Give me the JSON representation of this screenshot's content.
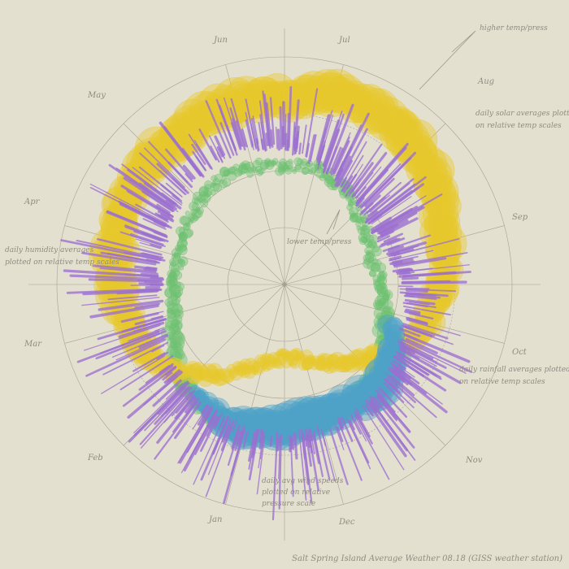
{
  "chart_data": {
    "type": "scatter",
    "projection": "polar",
    "title": "Salt Spring Island Average Weather 08.18 (GISS weather station)",
    "month_labels": [
      "Jun",
      "Jul",
      "Aug",
      "Sep",
      "Oct",
      "Nov",
      "Dec",
      "Jan",
      "Feb",
      "Mar",
      "Apr",
      "May"
    ],
    "annotations": {
      "higher": "higher temp/press",
      "lower": "lower temp/press",
      "solar": [
        "daily solar averages plotted",
        "on relative temp scales"
      ],
      "humidity": [
        "daily humidity averages",
        "plotted on relative temp scales"
      ],
      "rainfall": [
        "daily rainfall averages plotted",
        "on relative temp scales"
      ],
      "wind": [
        "daily avg wind speeds",
        "plotted on relative",
        "pressure scale"
      ]
    },
    "series": [
      {
        "name": "daily solar averages",
        "color": "#e8c92e",
        "kind": "bubble",
        "points": [
          [
            0,
            0.82,
            22
          ],
          [
            10,
            0.85,
            24
          ],
          [
            20,
            0.87,
            22
          ],
          [
            30,
            0.86,
            25
          ],
          [
            40,
            0.84,
            23
          ],
          [
            50,
            0.82,
            22
          ],
          [
            60,
            0.78,
            21
          ],
          [
            70,
            0.74,
            20
          ],
          [
            80,
            0.72,
            19
          ],
          [
            90,
            0.7,
            18
          ],
          [
            100,
            0.66,
            16
          ],
          [
            110,
            0.62,
            14
          ],
          [
            120,
            0.56,
            12
          ],
          [
            130,
            0.5,
            10
          ],
          [
            140,
            0.45,
            9
          ],
          [
            150,
            0.4,
            8
          ],
          [
            160,
            0.36,
            7
          ],
          [
            170,
            0.33,
            6
          ],
          [
            180,
            0.32,
            6
          ],
          [
            190,
            0.34,
            6
          ],
          [
            200,
            0.38,
            7
          ],
          [
            210,
            0.44,
            8
          ],
          [
            220,
            0.52,
            10
          ],
          [
            230,
            0.6,
            12
          ],
          [
            240,
            0.66,
            14
          ],
          [
            250,
            0.7,
            16
          ],
          [
            260,
            0.72,
            18
          ],
          [
            270,
            0.74,
            20
          ],
          [
            280,
            0.76,
            21
          ],
          [
            290,
            0.78,
            22
          ],
          [
            300,
            0.8,
            22
          ],
          [
            310,
            0.8,
            23
          ],
          [
            320,
            0.8,
            22
          ],
          [
            330,
            0.81,
            23
          ],
          [
            340,
            0.82,
            24
          ],
          [
            350,
            0.82,
            23
          ],
          [
            360,
            0.82,
            22
          ]
        ]
      },
      {
        "name": "daily humidity averages",
        "color": "#6cc070",
        "kind": "bubble",
        "points": [
          [
            0,
            0.52,
            5
          ],
          [
            15,
            0.53,
            5
          ],
          [
            30,
            0.5,
            6
          ],
          [
            45,
            0.45,
            5
          ],
          [
            60,
            0.42,
            5
          ],
          [
            75,
            0.4,
            5
          ],
          [
            90,
            0.42,
            6
          ],
          [
            105,
            0.45,
            7
          ],
          [
            120,
            0.5,
            8
          ],
          [
            135,
            0.56,
            9
          ],
          [
            150,
            0.6,
            10
          ],
          [
            165,
            0.62,
            10
          ],
          [
            180,
            0.64,
            11
          ],
          [
            195,
            0.66,
            11
          ],
          [
            210,
            0.66,
            10
          ],
          [
            225,
            0.62,
            9
          ],
          [
            240,
            0.56,
            8
          ],
          [
            255,
            0.5,
            7
          ],
          [
            270,
            0.48,
            6
          ],
          [
            285,
            0.48,
            5
          ],
          [
            300,
            0.5,
            5
          ],
          [
            315,
            0.52,
            5
          ],
          [
            330,
            0.54,
            5
          ],
          [
            345,
            0.53,
            5
          ],
          [
            360,
            0.52,
            5
          ]
        ]
      },
      {
        "name": "daily rainfall averages",
        "color": "#4ea3c8",
        "kind": "bubble",
        "points": [
          [
            110,
            0.5,
            10
          ],
          [
            120,
            0.56,
            14
          ],
          [
            130,
            0.6,
            18
          ],
          [
            140,
            0.62,
            22
          ],
          [
            150,
            0.6,
            20
          ],
          [
            160,
            0.6,
            20
          ],
          [
            170,
            0.6,
            24
          ],
          [
            180,
            0.62,
            22
          ],
          [
            190,
            0.64,
            22
          ],
          [
            200,
            0.66,
            18
          ],
          [
            210,
            0.64,
            14
          ],
          [
            220,
            0.6,
            10
          ]
        ]
      },
      {
        "name": "daily avg wind speeds",
        "color": "#9b6fcf",
        "kind": "spike",
        "points": [
          [
            0,
            0.6,
            0.85
          ],
          [
            15,
            0.55,
            0.82
          ],
          [
            30,
            0.5,
            0.8
          ],
          [
            45,
            0.48,
            0.78
          ],
          [
            60,
            0.46,
            0.76
          ],
          [
            75,
            0.48,
            0.78
          ],
          [
            90,
            0.52,
            0.8
          ],
          [
            105,
            0.55,
            0.84
          ],
          [
            120,
            0.58,
            0.88
          ],
          [
            135,
            0.62,
            0.92
          ],
          [
            150,
            0.65,
            0.96
          ],
          [
            165,
            0.66,
            1.0
          ],
          [
            180,
            0.66,
            1.0
          ],
          [
            195,
            0.66,
            0.98
          ],
          [
            210,
            0.64,
            0.96
          ],
          [
            225,
            0.62,
            0.95
          ],
          [
            240,
            0.6,
            0.94
          ],
          [
            255,
            0.56,
            0.94
          ],
          [
            270,
            0.55,
            0.96
          ],
          [
            285,
            0.56,
            0.96
          ],
          [
            300,
            0.58,
            0.94
          ],
          [
            315,
            0.6,
            0.9
          ],
          [
            330,
            0.62,
            0.86
          ],
          [
            345,
            0.62,
            0.84
          ],
          [
            360,
            0.6,
            0.85
          ]
        ]
      }
    ]
  }
}
